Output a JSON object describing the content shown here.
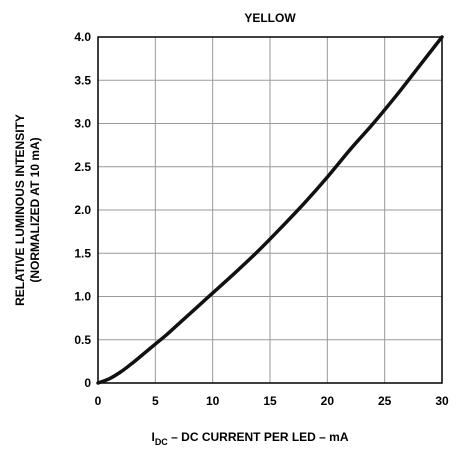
{
  "chart_data": {
    "type": "line",
    "title": "YELLOW",
    "xlabel": {
      "main": "I",
      "sub": "DC",
      "rest": " – DC CURRENT PER LED – mA"
    },
    "ylabel": {
      "line1": "RELATIVE LUMINOUS INTENSITY",
      "line2": "(NORMALIZED AT 10 mA)"
    },
    "xlim": [
      0,
      30
    ],
    "ylim": [
      0,
      4.0
    ],
    "x_ticks": [
      0,
      5,
      10,
      15,
      20,
      25,
      30
    ],
    "x_tick_labels": [
      "0",
      "5",
      "10",
      "15",
      "20",
      "25",
      "30"
    ],
    "y_ticks": [
      0,
      0.5,
      1.0,
      1.5,
      2.0,
      2.5,
      3.0,
      3.5,
      4.0
    ],
    "y_tick_labels": [
      "0",
      "0.5",
      "1.0",
      "1.5",
      "2.0",
      "2.5",
      "3.0",
      "3.5",
      "4.0"
    ],
    "grid": true,
    "series": [
      {
        "x": [
          0,
          1,
          2,
          3,
          4,
          5,
          6,
          7,
          8,
          9,
          10,
          12,
          14,
          16,
          18,
          20,
          22,
          24,
          26,
          28,
          30
        ],
        "y": [
          0,
          0.05,
          0.13,
          0.23,
          0.34,
          0.45,
          0.56,
          0.68,
          0.8,
          0.92,
          1.04,
          1.28,
          1.53,
          1.8,
          2.08,
          2.38,
          2.7,
          3.0,
          3.32,
          3.66,
          4.0
        ]
      }
    ],
    "line_color": "#111111"
  }
}
